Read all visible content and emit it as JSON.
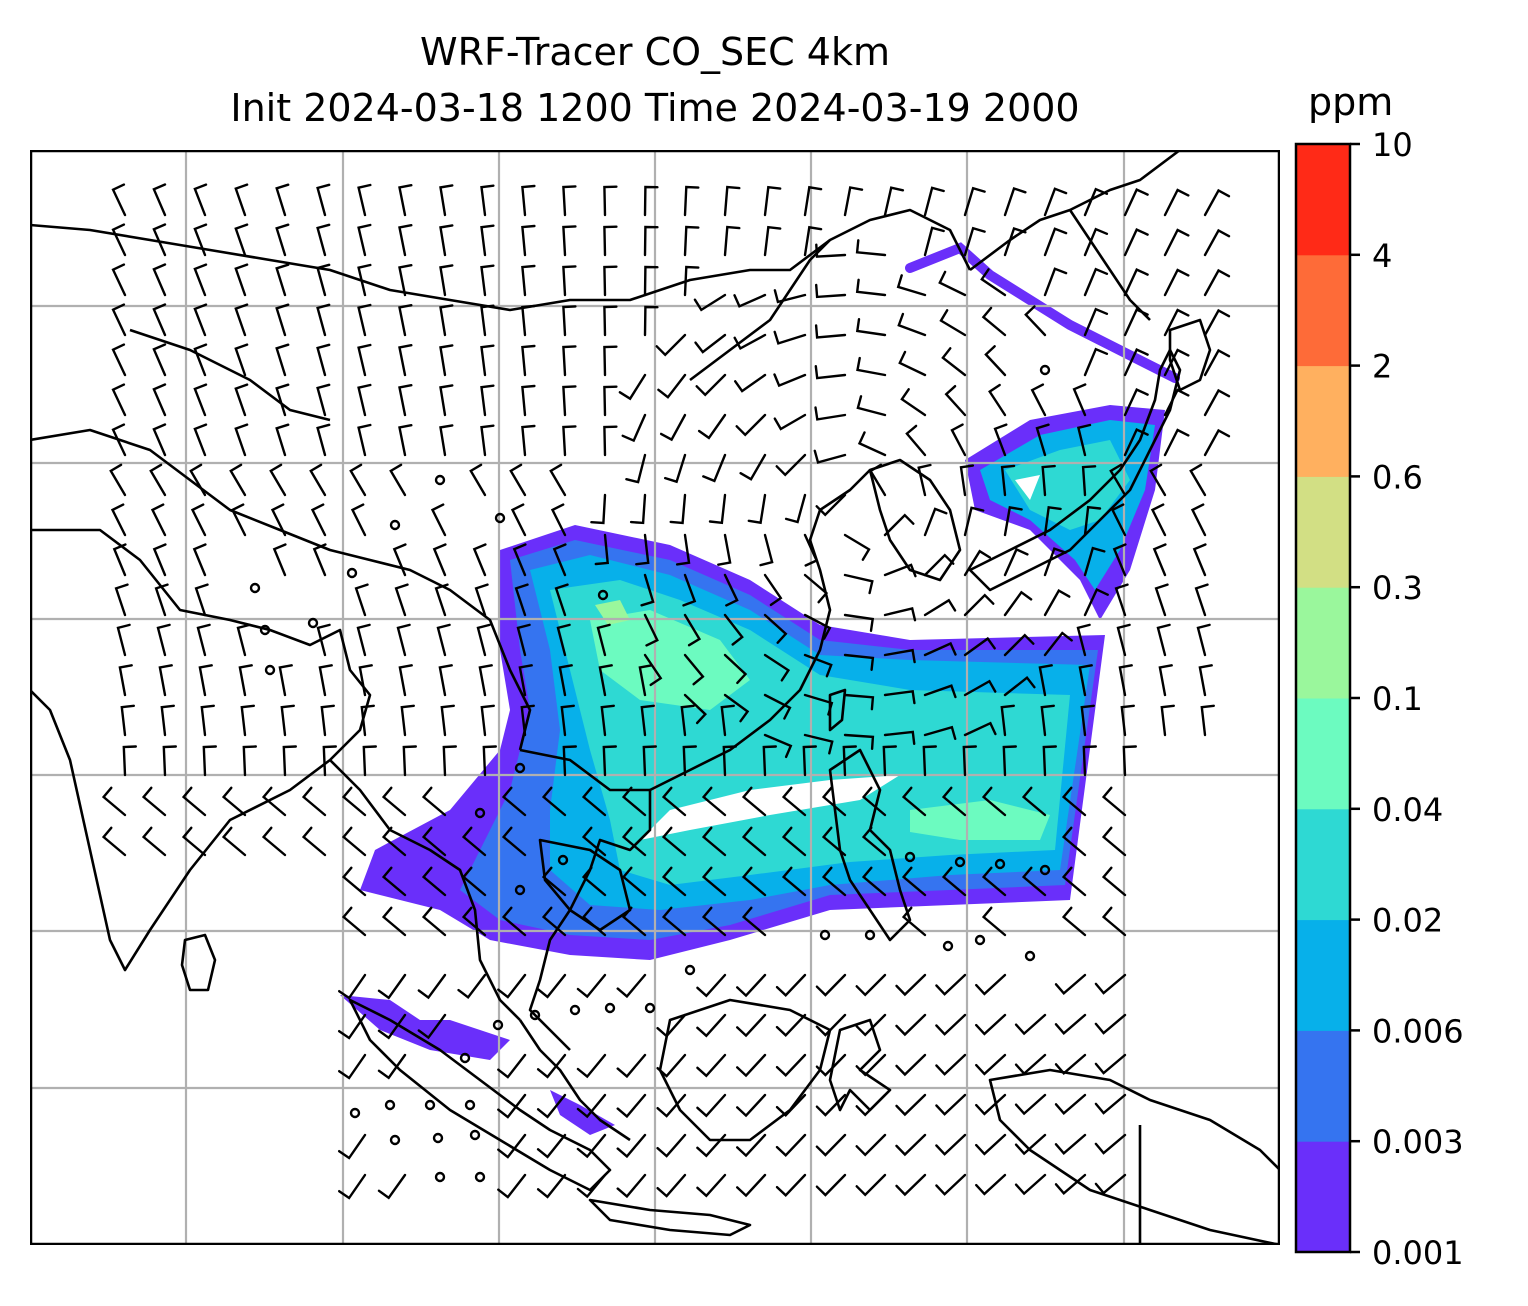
{
  "title": {
    "line1": "WRF-Tracer CO_SEC 4km",
    "line2": "Init 2024-03-18 1200 Time 2024-03-19 2000"
  },
  "colorbar": {
    "unit": "ppm",
    "levels": [
      "0.001",
      "0.003",
      "0.006",
      "0.02",
      "0.04",
      "0.1",
      "0.3",
      "0.6",
      "2",
      "4",
      "10"
    ],
    "colors": [
      "#6a2ffa",
      "#3574f0",
      "#07b0ea",
      "#2ed9d3",
      "#6cfbc0",
      "#9af79c",
      "#d2df84",
      "#ffb05f",
      "#fe6b38",
      "#ff2a17"
    ]
  },
  "map": {
    "graticule": "on",
    "coastline_color": "#000000",
    "grid_color": "#b0b0b0",
    "plume_levels_shown": [
      "0.001",
      "0.003",
      "0.006",
      "0.02",
      "0.04",
      "0.1"
    ]
  }
}
